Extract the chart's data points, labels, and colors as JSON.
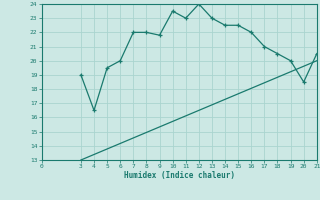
{
  "curve1_x": [
    3,
    4,
    5,
    6,
    7,
    8,
    9,
    10,
    11,
    12,
    13,
    14,
    15,
    16,
    17,
    18,
    19,
    20,
    21
  ],
  "curve1_y": [
    19,
    16.5,
    19.5,
    20,
    22,
    22,
    21.8,
    23.5,
    23,
    24,
    23,
    22.5,
    22.5,
    22,
    21,
    20.5,
    20,
    18.5,
    20.5
  ],
  "curve2_x": [
    3,
    21
  ],
  "curve2_y": [
    13,
    20
  ],
  "line_color": "#1a7a6e",
  "bg_color": "#cce8e4",
  "grid_color": "#aad4cf",
  "xlabel": "Humidex (Indice chaleur)",
  "xlim": [
    0,
    21
  ],
  "ylim": [
    13,
    24
  ],
  "xticks": [
    0,
    3,
    4,
    5,
    6,
    7,
    8,
    9,
    10,
    11,
    12,
    13,
    14,
    15,
    16,
    17,
    18,
    19,
    20,
    21
  ],
  "yticks": [
    13,
    14,
    15,
    16,
    17,
    18,
    19,
    20,
    21,
    22,
    23,
    24
  ],
  "marker": "+",
  "markersize": 3,
  "linewidth": 0.9
}
